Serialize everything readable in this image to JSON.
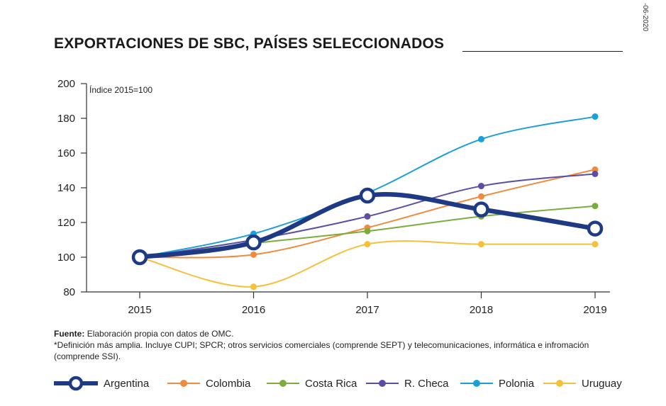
{
  "side_code": "-06-2020",
  "title": "EXPORTACIONES DE SBC, PAÍSES SELECCIONADOS",
  "notes": {
    "source_label": "Fuente:",
    "source_text": "Elaboración propia con datos de OMC.",
    "definition": "*Definición más amplia. Incluye CUPI; SPCR; otros servicios comerciales (comprende SEPT) y telecomunicaciones, informática e infromación (comprende SSI)."
  },
  "chart_data": {
    "type": "line",
    "title": "EXPORTACIONES DE SBC, PAÍSES SELECCIONADOS",
    "annotation": "Índice 2015=100",
    "xlabel": "",
    "ylabel": "",
    "x": [
      "2015",
      "2016",
      "2017",
      "2018",
      "2019"
    ],
    "ylim": [
      80,
      200
    ],
    "yticks": [
      80,
      100,
      120,
      140,
      160,
      180,
      200
    ],
    "grid": false,
    "legend_position": "bottom",
    "series": [
      {
        "name": "Colombia",
        "color": "#f08a3c",
        "values": [
          100,
          101.5,
          117,
          135,
          150.5
        ]
      },
      {
        "name": "Costa Rica",
        "color": "#7aad3c",
        "values": [
          100,
          108,
          115,
          123.5,
          129.5
        ]
      },
      {
        "name": "R. Checa",
        "color": "#5a4fa5",
        "values": [
          100,
          110,
          123.5,
          141,
          148
        ]
      },
      {
        "name": "Polonia",
        "color": "#1aa0d8",
        "values": [
          100,
          113.5,
          137,
          168,
          181
        ]
      },
      {
        "name": "Uruguay",
        "color": "#f5c13a",
        "values": [
          100,
          83,
          107.5,
          107.5,
          107.5
        ]
      },
      {
        "name": "Argentina",
        "color": "#1e3a84",
        "values": [
          100,
          108.5,
          135.5,
          127.5,
          116.5
        ],
        "emphasis": true
      }
    ]
  },
  "legend": [
    "Argentina",
    "Colombia",
    "Costa Rica",
    "R. Checa",
    "Polonia",
    "Uruguay"
  ]
}
